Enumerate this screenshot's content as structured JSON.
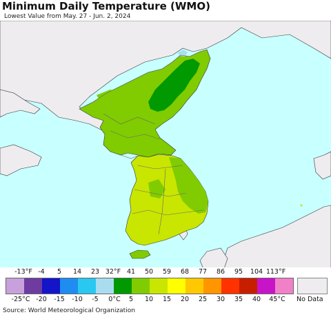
{
  "header": {
    "title": "Minimum Daily Temperature (WMO)",
    "subtitle": "Lowest Value from May. 27 - Jun. 2, 2024"
  },
  "map": {
    "colors": {
      "ocean": "#c8ffff",
      "land_no_data": "#eeecef",
      "temp_0_5": "#009900",
      "temp_5_10": "#80cc00",
      "temp_10_15": "#c8e600",
      "lake": "#a8e0f0"
    },
    "regions": [
      {
        "name": "Northeast China / Russia",
        "value": "No Data"
      },
      {
        "name": "North Korea",
        "value_range_c": "0-15"
      },
      {
        "name": "South Korea",
        "value_range_c": "5-15"
      },
      {
        "name": "Japan",
        "value": "No Data"
      }
    ]
  },
  "legend": {
    "fahrenheit_ticks": [
      "-13°F",
      "-4",
      "5",
      "14",
      "23",
      "32°F",
      "41",
      "50",
      "59",
      "68",
      "77",
      "86",
      "95",
      "104",
      "113°F"
    ],
    "celsius_ticks": [
      "-25°C",
      "-20",
      "-15",
      "-10",
      "-5",
      "0°C",
      "5",
      "10",
      "15",
      "20",
      "25",
      "30",
      "35",
      "40",
      "45°C"
    ],
    "swatch_colors": [
      "#c8a0dc",
      "#6e3ca0",
      "#1414c8",
      "#1e8cf0",
      "#28c8f0",
      "#aadcf0",
      "#009900",
      "#80cc00",
      "#c8e600",
      "#ffff00",
      "#ffc800",
      "#ff9600",
      "#ff3200",
      "#c81e00",
      "#c814c8",
      "#f080c8"
    ],
    "no_data_label": "No Data"
  },
  "footer": {
    "source": "Source: World Meteorological Organization"
  }
}
